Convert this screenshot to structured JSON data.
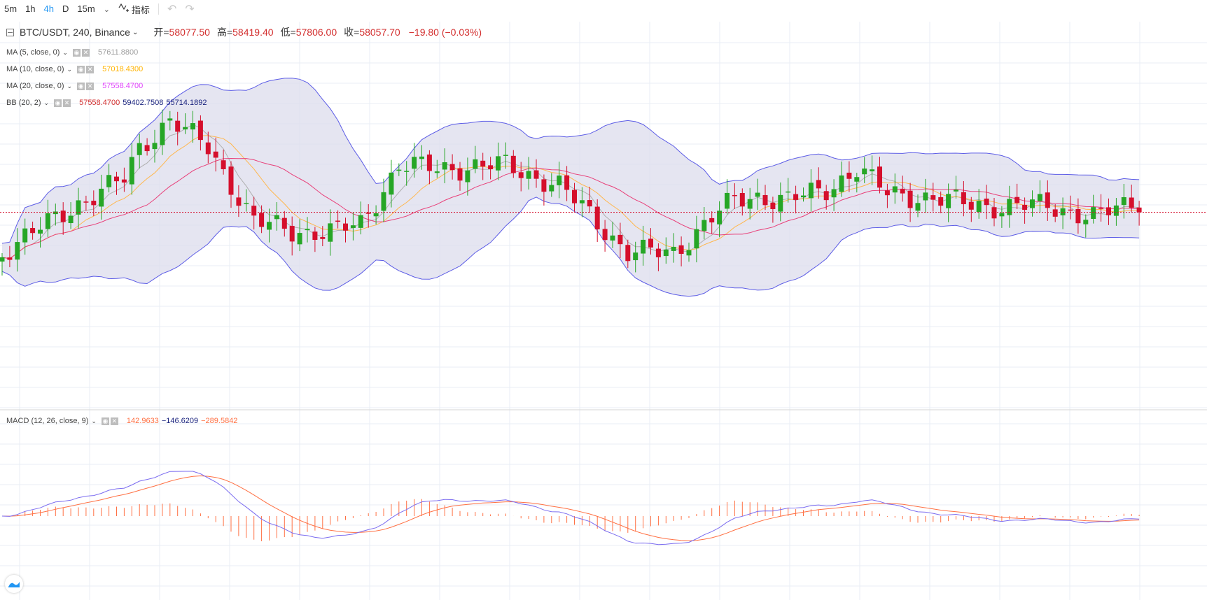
{
  "toolbar": {
    "timeframes": [
      {
        "label": "5m",
        "active": false
      },
      {
        "label": "1h",
        "active": false
      },
      {
        "label": "4h",
        "active": true
      },
      {
        "label": "D",
        "active": false
      },
      {
        "label": "15m",
        "active": false
      }
    ],
    "dropdown_icon": "chevron-down-icon",
    "indicators_label": "指标",
    "indicators_icon": "indicator-icon",
    "undo_icon": "undo-icon",
    "redo_icon": "redo-icon"
  },
  "main_legend": {
    "symbol": "BTC/USDT, 240, Binance",
    "open_label": "开=",
    "open": "58077.50",
    "high_label": "高=",
    "high": "58419.40",
    "low_label": "低=",
    "low": "57806.00",
    "close_label": "收=",
    "close": "58057.70",
    "change": "−19.80 (−0.03%)"
  },
  "indicators": [
    {
      "label": "MA (5, close, 0)",
      "values": [
        {
          "text": "57611.8800",
          "color": "#9e9e9e"
        }
      ]
    },
    {
      "label": "MA (10, close, 0)",
      "values": [
        {
          "text": "57018.4300",
          "color": "#ffb300"
        }
      ]
    },
    {
      "label": "MA (20, close, 0)",
      "values": [
        {
          "text": "57558.4700",
          "color": "#e040fb"
        }
      ]
    },
    {
      "label": "BB (20, 2)",
      "values": [
        {
          "text": "57558.4700",
          "color": "#d32f2f"
        },
        {
          "text": "59402.7508",
          "color": "#1a237e"
        },
        {
          "text": "55714.1892",
          "color": "#1a237e"
        }
      ]
    }
  ],
  "macd_legend": {
    "label": "MACD (12, 26, close, 9)",
    "values": [
      {
        "text": "142.9633",
        "color": "#ff7043"
      },
      {
        "text": "−146.6209",
        "color": "#1a237e"
      },
      {
        "text": "−289.5842",
        "color": "#ff7043"
      }
    ]
  },
  "colors": {
    "up": "#26a626",
    "down": "#d50f2c",
    "bb_fill": "#dcdcec",
    "bb_band": "#5c5ce6",
    "ma5": "#b0b0b0",
    "ma10": "#ffb74d",
    "ma20": "#e8417a",
    "macd_line": "#7b6cf0",
    "signal_line": "#ff7043",
    "grid": "#e9eef4",
    "last_price_line": "#d50f2c"
  },
  "logo_icon": "tradingview-logo-icon"
}
